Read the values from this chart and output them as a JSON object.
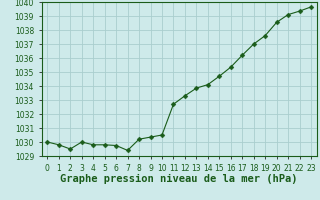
{
  "x": [
    0,
    1,
    2,
    3,
    4,
    5,
    6,
    7,
    8,
    9,
    10,
    11,
    12,
    13,
    14,
    15,
    16,
    17,
    18,
    19,
    20,
    21,
    22,
    23
  ],
  "y": [
    1030.0,
    1029.8,
    1029.5,
    1030.0,
    1029.8,
    1029.8,
    1029.75,
    1029.4,
    1030.2,
    1030.35,
    1030.5,
    1032.7,
    1033.3,
    1033.85,
    1034.1,
    1034.7,
    1035.35,
    1036.2,
    1037.0,
    1037.6,
    1038.55,
    1039.1,
    1039.35,
    1039.65
  ],
  "ylim": [
    1029,
    1040
  ],
  "yticks": [
    1029,
    1030,
    1031,
    1032,
    1033,
    1034,
    1035,
    1036,
    1037,
    1038,
    1039,
    1040
  ],
  "xlabel": "Graphe pression niveau de la mer (hPa)",
  "line_color": "#1a5c1a",
  "marker": "D",
  "marker_size": 2.5,
  "bg_color": "#ceeaea",
  "grid_color": "#aacece",
  "text_color": "#1a5c1a",
  "tick_fontsize": 5.5,
  "xlabel_fontsize": 7.5,
  "line_width": 0.8
}
